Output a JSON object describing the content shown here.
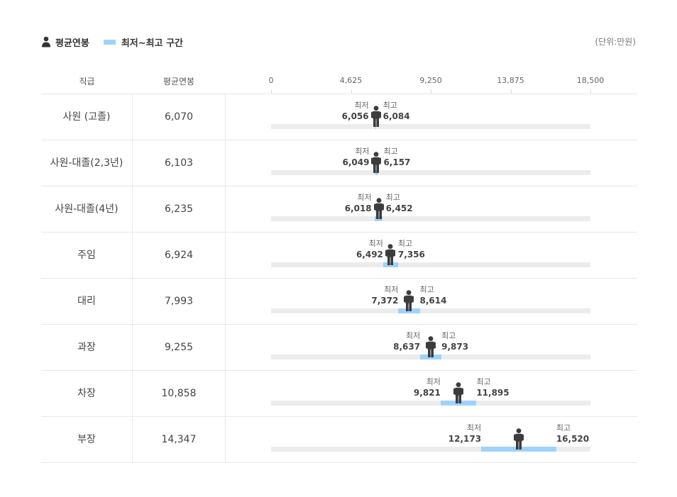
{
  "legend": {
    "average_label": "평균연봉",
    "range_label": "최저~최고 구간",
    "unit": "(단위:만원)"
  },
  "header": {
    "grade": "직급",
    "average": "평균연봉"
  },
  "colors": {
    "range": "#9fd2fb",
    "track": "#ececec",
    "figure": "#3c3c3c"
  },
  "icons": {
    "legend_icon": "person-icon",
    "marker_icon": "person-icon"
  },
  "chart_data": {
    "type": "range-bar",
    "axis": {
      "min": 0,
      "max": 18500,
      "ticks": [
        0,
        4625,
        9250,
        13875,
        18500
      ],
      "tick_labels": [
        "0",
        "4,625",
        "9,250",
        "13,875",
        "18,500"
      ]
    },
    "min_label": "최저",
    "max_label": "최고",
    "rows": [
      {
        "grade": "사원 (고졸)",
        "avg": 6070,
        "avg_label": "6,070",
        "min": 6056,
        "min_label": "6,056",
        "max": 6084,
        "max_label": "6,084"
      },
      {
        "grade": "사원-대졸(2,3년)",
        "avg": 6103,
        "avg_label": "6,103",
        "min": 6049,
        "min_label": "6,049",
        "max": 6157,
        "max_label": "6,157"
      },
      {
        "grade": "사원-대졸(4년)",
        "avg": 6235,
        "avg_label": "6,235",
        "min": 6018,
        "min_label": "6,018",
        "max": 6452,
        "max_label": "6,452"
      },
      {
        "grade": "주임",
        "avg": 6924,
        "avg_label": "6,924",
        "min": 6492,
        "min_label": "6,492",
        "max": 7356,
        "max_label": "7,356"
      },
      {
        "grade": "대리",
        "avg": 7993,
        "avg_label": "7,993",
        "min": 7372,
        "min_label": "7,372",
        "max": 8614,
        "max_label": "8,614"
      },
      {
        "grade": "과장",
        "avg": 9255,
        "avg_label": "9,255",
        "min": 8637,
        "min_label": "8,637",
        "max": 9873,
        "max_label": "9,873"
      },
      {
        "grade": "차장",
        "avg": 10858,
        "avg_label": "10,858",
        "min": 9821,
        "min_label": "9,821",
        "max": 11895,
        "max_label": "11,895"
      },
      {
        "grade": "부장",
        "avg": 14347,
        "avg_label": "14,347",
        "min": 12173,
        "min_label": "12,173",
        "max": 16520,
        "max_label": "16,520"
      }
    ]
  }
}
